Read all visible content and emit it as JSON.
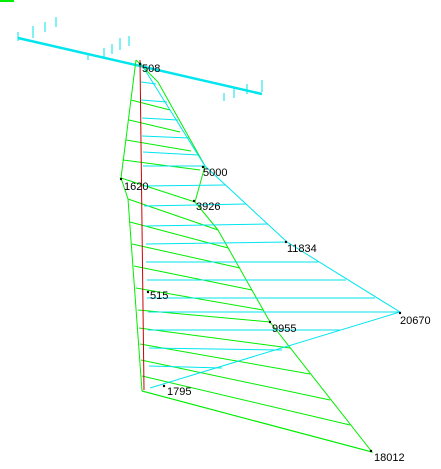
{
  "colors": {
    "beam": "#00e5ee",
    "diagram_a": "#00ee00",
    "diagram_b": "#00e5ee",
    "member": "#cc0000",
    "text": "#000000",
    "corner_tab": "#00ee00"
  },
  "labels": {
    "top": "508",
    "mid_left": "1620",
    "mid_cyan": "5000",
    "mid_green": "3926",
    "right_cyan": "11834",
    "mid_low": "515",
    "right_green": "9955",
    "far_right": "20670",
    "base_left": "1795",
    "bottom_right": "18012"
  }
}
